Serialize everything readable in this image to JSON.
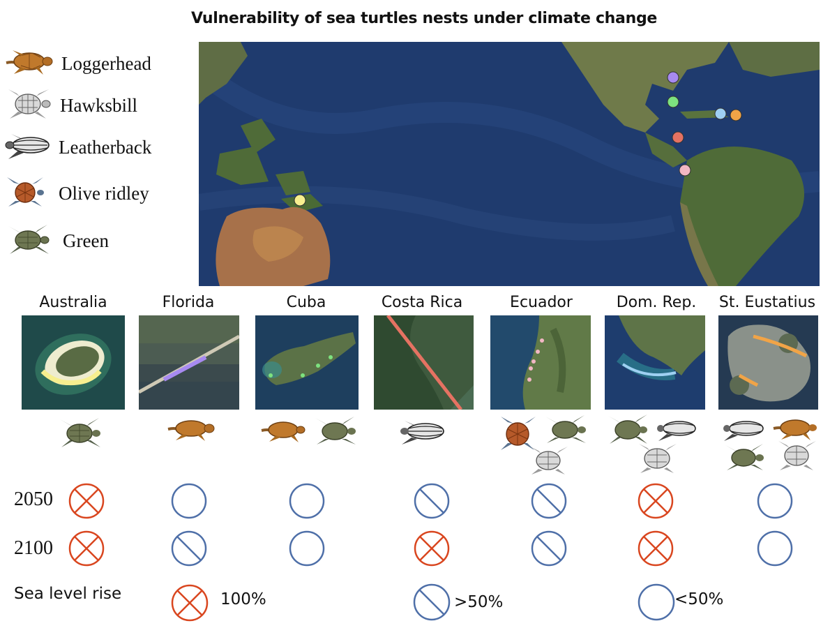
{
  "title": "Vulnerability of sea turtles nests under climate change",
  "legend": [
    {
      "name": "Loggerhead",
      "icon": "loggerhead-turtle-icon"
    },
    {
      "name": "Hawksbill",
      "icon": "hawksbill-turtle-icon"
    },
    {
      "name": "Leatherback",
      "icon": "leatherback-turtle-icon"
    },
    {
      "name": "Olive ridley",
      "icon": "olive-ridley-turtle-icon"
    },
    {
      "name": "Green",
      "icon": "green-turtle-icon"
    }
  ],
  "sites": [
    {
      "name": "Australia",
      "color": "#f7ef8f",
      "species": [
        "Green"
      ],
      "y2050": "100%",
      "y2100": "100%"
    },
    {
      "name": "Florida",
      "color": "#a78af0",
      "species": [
        "Loggerhead"
      ],
      "y2050": "<50%",
      "y2100": ">50%"
    },
    {
      "name": "Cuba",
      "color": "#7de27f",
      "species": [
        "Loggerhead",
        "Green"
      ],
      "y2050": "<50%",
      "y2100": "<50%"
    },
    {
      "name": "Costa Rica",
      "color": "#e57262",
      "species": [
        "Leatherback"
      ],
      "y2050": ">50%",
      "y2100": "100%"
    },
    {
      "name": "Ecuador",
      "color": "#f2b7c4",
      "species": [
        "Olive ridley",
        "Green",
        "Hawksbill"
      ],
      "y2050": ">50%",
      "y2100": ">50%"
    },
    {
      "name": "Dom. Rep.",
      "color": "#9ed0f2",
      "species": [
        "Green",
        "Leatherback",
        "Hawksbill"
      ],
      "y2050": "100%",
      "y2100": "100%"
    },
    {
      "name": "St. Eustatius",
      "color": "#f1a447",
      "species": [
        "Leatherback",
        "Loggerhead",
        "Green",
        "Hawksbill"
      ],
      "y2050": "<50%",
      "y2100": "<50%"
    }
  ],
  "rows": {
    "y2050": "2050",
    "y2100": "2100"
  },
  "key": {
    "label": "Sea level rise",
    "items": [
      {
        "type": "cross",
        "label": "100%"
      },
      {
        "type": "slash",
        "label": ">50%"
      },
      {
        "type": "empty",
        "label": "<50%"
      }
    ]
  },
  "colors": {
    "cross": "#d9461f",
    "circle": "#4e6fa8",
    "ocean": "#1f3b6e",
    "land": "#4f6b38"
  }
}
